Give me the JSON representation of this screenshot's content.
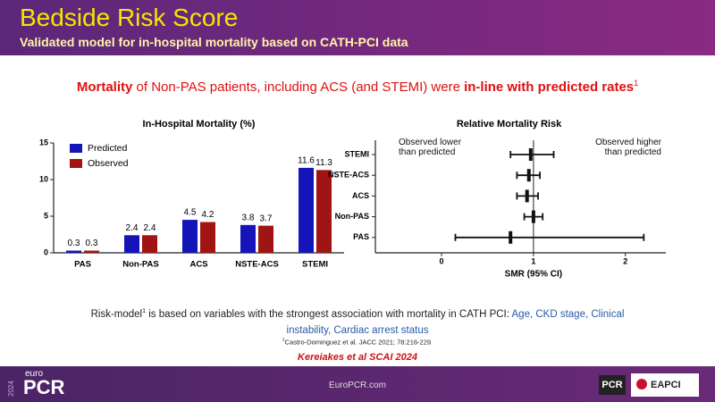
{
  "header": {
    "title": "Bedside Risk Score",
    "subtitle": "Validated model for in-hospital mortality based on CATH-PCI data"
  },
  "headline": {
    "parts": [
      "Mortality",
      " of Non-PAS patients, including ACS (and STEMI) were ",
      "in-line with predicted rates"
    ],
    "sup": "1"
  },
  "chart_data": [
    {
      "type": "bar",
      "title": "In-Hospital Mortality (%)",
      "categories": [
        "PAS",
        "Non-PAS",
        "ACS",
        "NSTE-ACS",
        "STEMI"
      ],
      "series": [
        {
          "name": "Predicted",
          "color": "#1414b8",
          "values": [
            0.3,
            2.4,
            4.5,
            3.8,
            11.6
          ]
        },
        {
          "name": "Observed",
          "color": "#a01414",
          "values": [
            0.3,
            2.4,
            4.2,
            3.7,
            11.3
          ]
        }
      ],
      "ylim": [
        0,
        15
      ],
      "yticks": [
        0,
        5,
        10,
        15
      ],
      "legend": "upper-left"
    },
    {
      "type": "forest",
      "title": "Relative Mortality Risk",
      "categories": [
        "STEMI",
        "NSTE-ACS",
        "ACS",
        "Non-PAS",
        "PAS"
      ],
      "values": [
        0.97,
        0.95,
        0.93,
        1.0,
        0.75
      ],
      "lower": [
        0.75,
        0.82,
        0.82,
        0.9,
        0.15
      ],
      "upper": [
        1.22,
        1.07,
        1.05,
        1.1,
        2.2
      ],
      "reference_line": 1,
      "xlim": [
        -0.72,
        2.44
      ],
      "xticks": [
        0,
        1,
        2
      ],
      "xlabel": "SMR (95% CI)",
      "annotations": [
        "Observed lower than predicted",
        "Observed higher than predicted"
      ],
      "color": "#111111"
    }
  ],
  "note": {
    "text": "Risk-model",
    "sup": "1",
    "text2": " is based on variables with the strongest association with mortality in CATH PCI: ",
    "highlight": "Age, CKD stage, Clinical instability, Cardiac arrest status"
  },
  "reference": {
    "sup": "1",
    "text": "Castro-Dominguez et al. JACC 2021; 78:216-229."
  },
  "citation": "Kereiakes et al SCAI 2024",
  "footer": {
    "year": "2024",
    "brand_top": "euro",
    "brand": "PCR",
    "url": "EuroPCR.com",
    "logo1": "PCR",
    "logo2": "EAPCI"
  }
}
